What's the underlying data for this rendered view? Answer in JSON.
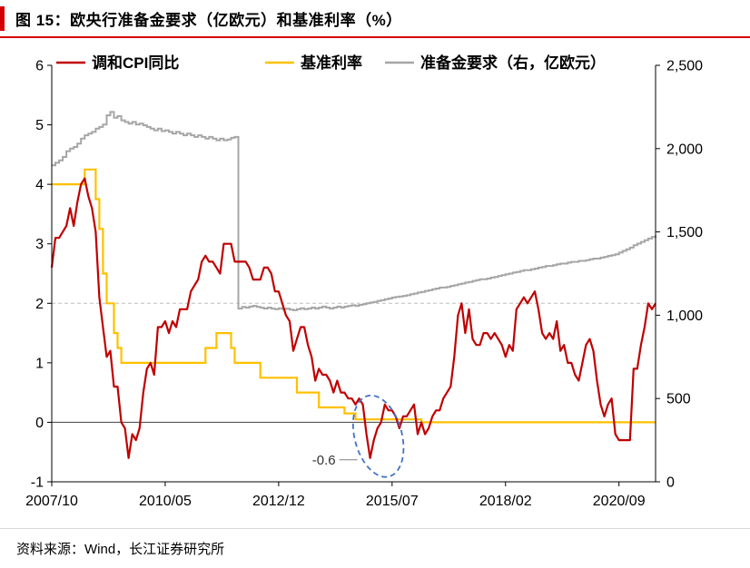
{
  "header": {
    "title": "图 15：欧央行准备金要求（亿欧元）和基准利率（%）",
    "accent_color": "#d40000"
  },
  "footer": {
    "source": "资料来源：Wind，长江证券研究所"
  },
  "annotation": {
    "text": "-0.6",
    "x_month": "2015/01",
    "value": -0.6,
    "color": "#4472c4"
  },
  "chart_data": {
    "type": "line",
    "title": "欧央行准备金要求（亿欧元）和基准利率（%）",
    "legend_position": "top",
    "grid": "dashed line at left-axis value 2 only",
    "x_start": "2007/10",
    "x_end": "2021/07",
    "x_tick_labels": [
      "2007/10",
      "2010/05",
      "2012/12",
      "2015/07",
      "2018/02",
      "2020/09"
    ],
    "left_axis": {
      "min": -1,
      "max": 6,
      "ticks": [
        6,
        5,
        4,
        3,
        2,
        1,
        0,
        -1
      ],
      "dashed_gridline_at": 2
    },
    "right_axis": {
      "min": 0,
      "max": 2500,
      "ticks": [
        2500,
        2000,
        1500,
        1000,
        500,
        0
      ],
      "tick_labels": [
        "2,500",
        "2,000",
        "1,500",
        "1,000",
        "500",
        "0"
      ]
    },
    "series": [
      {
        "name": "调和CPI同比",
        "axis": "left",
        "color": "#c00000",
        "style": "line",
        "start": "2007/10",
        "values": [
          2.6,
          3.1,
          3.1,
          3.2,
          3.3,
          3.6,
          3.3,
          3.7,
          4.0,
          4.1,
          3.8,
          3.6,
          3.2,
          2.1,
          1.6,
          1.1,
          1.2,
          0.6,
          0.6,
          0.0,
          -0.1,
          -0.6,
          -0.2,
          -0.3,
          -0.1,
          0.5,
          0.9,
          1.0,
          0.8,
          1.6,
          1.6,
          1.7,
          1.5,
          1.7,
          1.6,
          1.9,
          1.9,
          1.9,
          2.2,
          2.3,
          2.4,
          2.7,
          2.8,
          2.7,
          2.7,
          2.6,
          2.5,
          3.0,
          3.0,
          3.0,
          2.7,
          2.7,
          2.7,
          2.7,
          2.6,
          2.4,
          2.4,
          2.4,
          2.6,
          2.6,
          2.5,
          2.2,
          2.2,
          2.0,
          1.8,
          1.7,
          1.2,
          1.4,
          1.6,
          1.6,
          1.3,
          1.1,
          0.7,
          0.9,
          0.8,
          0.8,
          0.7,
          0.5,
          0.7,
          0.5,
          0.5,
          0.4,
          0.4,
          0.3,
          0.4,
          0.3,
          -0.2,
          -0.6,
          -0.3,
          -0.1,
          0.0,
          0.3,
          0.2,
          0.2,
          0.1,
          -0.1,
          0.1,
          0.1,
          0.2,
          0.3,
          -0.2,
          0.0,
          -0.2,
          -0.1,
          0.1,
          0.2,
          0.2,
          0.4,
          0.5,
          0.6,
          1.1,
          1.8,
          2.0,
          1.5,
          1.9,
          1.4,
          1.3,
          1.3,
          1.5,
          1.5,
          1.4,
          1.5,
          1.4,
          1.3,
          1.1,
          1.3,
          1.2,
          1.9,
          2.0,
          2.1,
          2.0,
          2.1,
          2.2,
          1.9,
          1.5,
          1.4,
          1.5,
          1.4,
          1.7,
          1.2,
          1.3,
          1.0,
          1.0,
          0.8,
          0.7,
          1.0,
          1.3,
          1.4,
          1.2,
          0.7,
          0.3,
          0.1,
          0.3,
          0.4,
          -0.2,
          -0.3,
          -0.3,
          -0.3,
          -0.3,
          0.9,
          0.9,
          1.3,
          1.6,
          2.0,
          1.9,
          2.0
        ]
      },
      {
        "name": "基准利率",
        "axis": "left",
        "color": "#ffc000",
        "style": "step",
        "points": [
          [
            "2007/10",
            4.0
          ],
          [
            "2008/07",
            4.25
          ],
          [
            "2008/10",
            3.75
          ],
          [
            "2008/11",
            3.25
          ],
          [
            "2008/12",
            2.5
          ],
          [
            "2009/01",
            2.0
          ],
          [
            "2009/03",
            1.5
          ],
          [
            "2009/04",
            1.25
          ],
          [
            "2009/05",
            1.0
          ],
          [
            "2011/04",
            1.25
          ],
          [
            "2011/07",
            1.5
          ],
          [
            "2011/11",
            1.25
          ],
          [
            "2011/12",
            1.0
          ],
          [
            "2012/07",
            0.75
          ],
          [
            "2013/05",
            0.5
          ],
          [
            "2013/11",
            0.25
          ],
          [
            "2014/06",
            0.15
          ],
          [
            "2014/09",
            0.05
          ],
          [
            "2016/03",
            0.0
          ]
        ]
      },
      {
        "name": "准备金要求（右，亿欧元）",
        "axis": "right",
        "color": "#a6a6a6",
        "style": "step",
        "start": "2007/10",
        "values": [
          1900,
          1915,
          1930,
          1950,
          1985,
          2000,
          2010,
          2030,
          2060,
          2080,
          2090,
          2100,
          2120,
          2130,
          2145,
          2200,
          2220,
          2185,
          2195,
          2170,
          2160,
          2150,
          2160,
          2145,
          2150,
          2140,
          2130,
          2120,
          2110,
          2120,
          2105,
          2110,
          2100,
          2090,
          2100,
          2090,
          2080,
          2090,
          2080,
          2070,
          2080,
          2070,
          2060,
          2070,
          2060,
          2050,
          2060,
          2050,
          2055,
          2065,
          2070,
          1040,
          1050,
          1045,
          1052,
          1056,
          1050,
          1045,
          1040,
          1046,
          1040,
          1036,
          1042,
          1036,
          1040,
          1034,
          1030,
          1036,
          1042,
          1036,
          1040,
          1046,
          1040,
          1046,
          1052,
          1046,
          1040,
          1046,
          1052,
          1046,
          1052,
          1056,
          1060,
          1056,
          1062,
          1066,
          1072,
          1076,
          1080,
          1086,
          1090,
          1096,
          1100,
          1106,
          1110,
          1112,
          1116,
          1120,
          1126,
          1130,
          1136,
          1140,
          1146,
          1150,
          1156,
          1160,
          1166,
          1166,
          1170,
          1176,
          1180,
          1186,
          1190,
          1196,
          1200,
          1206,
          1210,
          1216,
          1216,
          1220,
          1226,
          1230,
          1236,
          1240,
          1246,
          1250,
          1256,
          1260,
          1266,
          1270,
          1270,
          1276,
          1280,
          1286,
          1290,
          1296,
          1296,
          1300,
          1306,
          1310,
          1310,
          1316,
          1320,
          1320,
          1326,
          1326,
          1330,
          1336,
          1340,
          1340,
          1346,
          1350,
          1356,
          1360,
          1366,
          1376,
          1386,
          1396,
          1406,
          1420,
          1430,
          1440,
          1450,
          1460,
          1470,
          1480
        ]
      }
    ]
  }
}
